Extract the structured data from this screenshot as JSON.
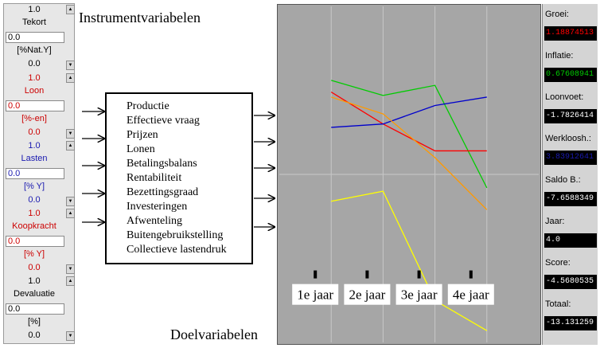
{
  "headings": {
    "instrument": "Instrumentvariabelen",
    "doel": "Doelvariabelen"
  },
  "instruments": {
    "tekort": {
      "value": "1.0",
      "label": "Tekort",
      "input": "0.0",
      "unit": "[%Nat.Y]",
      "setting": "0.0"
    },
    "loon": {
      "value": "1.0",
      "label": "Loon",
      "input": "0.0",
      "unit": "[%-en]",
      "setting": "0.0"
    },
    "lasten": {
      "value": "1.0",
      "label": "Lasten",
      "input": "0.0",
      "unit": "[% Y]",
      "setting": "0.0"
    },
    "koopkracht": {
      "value": "1.0",
      "label": "Koopkracht",
      "input": "0.0",
      "unit": "[% Y]",
      "setting": "0.0"
    },
    "devaluatie": {
      "value": "1.0",
      "label": "Devaluatie",
      "input": "0.0",
      "unit": "[%]",
      "setting": "0.0"
    }
  },
  "model_items": [
    "Productie",
    "Effectieve vraag",
    "Prijzen",
    "Lonen",
    "Betalingsbalans",
    "Rentabiliteit",
    "Bezettingsgraad",
    "Investeringen",
    "Afwenteling",
    "Buitengebruikstelling",
    "Collectieve lastendruk"
  ],
  "readouts": {
    "groei": {
      "label": "Groei:",
      "value": "1.18874513"
    },
    "inflatie": {
      "label": "Inflatie:",
      "value": "0.67608941"
    },
    "loonvoet": {
      "label": "Loonvoet:",
      "value": "-1.7826414"
    },
    "werkloosh": {
      "label": "Werkloosh.:",
      "value": "3.83912641"
    },
    "saldo": {
      "label": "Saldo B.:",
      "value": "-7.6588349"
    },
    "jaar": {
      "label": "Jaar:",
      "value": "4.0"
    },
    "score": {
      "label": "Score:",
      "value": "-4.5680535"
    },
    "totaal": {
      "label": "Totaal:",
      "value": "-13.131259"
    }
  },
  "colors": {
    "groei": "#ff0000",
    "inflatie": "#00cc00",
    "loonvoet": "#ffffff",
    "werkloosh": "#1a1ab0",
    "saldo": "#ffffff",
    "jaar": "#ffffff",
    "score": "#ffffff",
    "totaal": "#ffffff"
  },
  "chart_data": {
    "type": "line",
    "x": [
      1,
      2,
      3,
      4,
      5
    ],
    "categories": [
      "1e jaar",
      "2e jaar",
      "3e jaar",
      "4e jaar"
    ],
    "ylim": [
      -1,
      1
    ],
    "grid": true,
    "series": [
      {
        "color": "#00cc00",
        "values": [
          0.56,
          0.47,
          0.53,
          -0.08,
          null
        ]
      },
      {
        "color": "#ff0000",
        "values": [
          0.49,
          0.3,
          0.14,
          0.14,
          null
        ]
      },
      {
        "color": "#0000cc",
        "values": [
          0.28,
          0.3,
          0.41,
          0.46,
          null
        ]
      },
      {
        "color": "#ff9900",
        "values": [
          0.46,
          0.36,
          0.1,
          -0.21,
          null
        ]
      },
      {
        "color": "#ffff00",
        "values": [
          -0.16,
          -0.1,
          -0.75,
          -0.93,
          null
        ]
      }
    ]
  }
}
